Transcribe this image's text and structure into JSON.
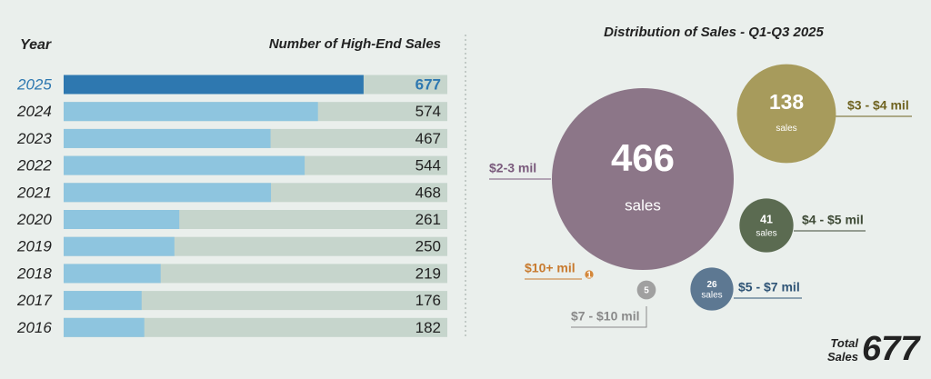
{
  "chart_data": [
    {
      "type": "hbar",
      "category_header": "Year",
      "value_header": "Number of High-End Sales",
      "categories": [
        "2025",
        "2024",
        "2023",
        "2022",
        "2021",
        "2020",
        "2019",
        "2018",
        "2017",
        "2016"
      ],
      "values": [
        677,
        574,
        467,
        544,
        468,
        261,
        250,
        219,
        176,
        182
      ],
      "colors": [
        "#2e78b0",
        "#8ec5df",
        "#8ec5df",
        "#8ec5df",
        "#8ec5df",
        "#8ec5df",
        "#8ec5df",
        "#8ec5df",
        "#8ec5df",
        "#8ec5df"
      ],
      "label_colors": [
        "#2e78b0",
        "#222222",
        "#222222",
        "#222222",
        "#222222",
        "#222222",
        "#222222",
        "#222222",
        "#222222",
        "#222222"
      ],
      "track_color": "#c6d5cc",
      "xlim": [
        0,
        866
      ]
    },
    {
      "type": "bubble",
      "title": "Distribution of Sales - Q1-Q3 2025",
      "categories": [
        "$2-3 mil",
        "$3 - $4 mil",
        "$4 - $5 mil",
        "$5 - $7 mil",
        "$7 - $10 mil",
        "$10+ mil"
      ],
      "values": [
        466,
        138,
        41,
        26,
        5,
        1
      ],
      "unit_label": "sales",
      "colors": [
        "#8c7688",
        "#a79b5c",
        "#5b6b51",
        "#5d7892",
        "#a0a0a0",
        "#d4873a"
      ],
      "label_colors": [
        "#7a5a7c",
        "#6f6320",
        "#3e4a36",
        "#2f5476",
        "#8a8a8a",
        "#c87a2e"
      ],
      "total_label": "Total Sales",
      "total": 677
    }
  ]
}
